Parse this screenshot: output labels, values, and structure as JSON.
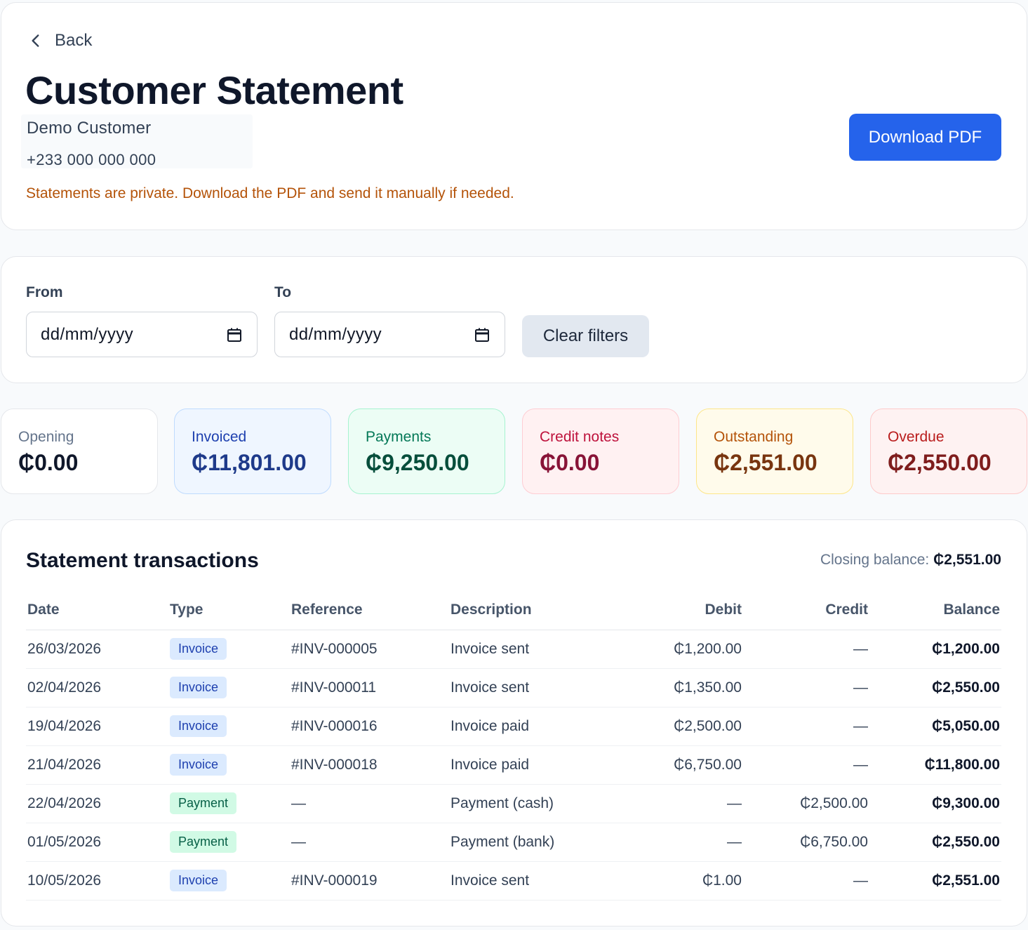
{
  "header": {
    "back_label": "Back",
    "title": "Customer Statement",
    "customer_name": "Demo Customer",
    "customer_phone": "+233 000 000 000",
    "privacy_note": "Statements are private. Download the PDF and send it manually if needed.",
    "download_label": "Download PDF"
  },
  "filters": {
    "from_label": "From",
    "to_label": "To",
    "from_placeholder": "dd/mm/yyyy",
    "to_placeholder": "dd/mm/yyyy",
    "clear_label": "Clear filters"
  },
  "summary": [
    {
      "label": "Opening",
      "value": "₵0.00",
      "bg": "#ffffff",
      "border": "#e5e7eb",
      "label_color": "#64748b",
      "value_color": "#0f172a"
    },
    {
      "label": "Invoiced",
      "value": "₵11,801.00",
      "bg": "#eff6ff",
      "border": "#bfdbfe",
      "label_color": "#1e40af",
      "value_color": "#1e3a8a"
    },
    {
      "label": "Payments",
      "value": "₵9,250.00",
      "bg": "#ecfdf5",
      "border": "#a7f3d0",
      "label_color": "#047857",
      "value_color": "#064e3b"
    },
    {
      "label": "Credit notes",
      "value": "₵0.00",
      "bg": "#fff1f2",
      "border": "#fecdd3",
      "label_color": "#be123c",
      "value_color": "#881337"
    },
    {
      "label": "Outstanding",
      "value": "₵2,551.00",
      "bg": "#fffbeb",
      "border": "#fde68a",
      "label_color": "#b45309",
      "value_color": "#78350f"
    },
    {
      "label": "Overdue",
      "value": "₵2,550.00",
      "bg": "#fef2f2",
      "border": "#fecaca",
      "label_color": "#b91c1c",
      "value_color": "#7f1d1d"
    }
  ],
  "transactions": {
    "title": "Statement transactions",
    "closing_label": "Closing balance:",
    "closing_value": "₵2,551.00",
    "columns": [
      "Date",
      "Type",
      "Reference",
      "Description",
      "Debit",
      "Credit",
      "Balance"
    ],
    "rows": [
      {
        "date": "26/03/2026",
        "type": "Invoice",
        "ref": "#INV-000005",
        "desc": "Invoice sent",
        "debit": "₵1,200.00",
        "credit": "—",
        "balance": "₵1,200.00"
      },
      {
        "date": "02/04/2026",
        "type": "Invoice",
        "ref": "#INV-000011",
        "desc": "Invoice sent",
        "debit": "₵1,350.00",
        "credit": "—",
        "balance": "₵2,550.00"
      },
      {
        "date": "19/04/2026",
        "type": "Invoice",
        "ref": "#INV-000016",
        "desc": "Invoice paid",
        "debit": "₵2,500.00",
        "credit": "—",
        "balance": "₵5,050.00"
      },
      {
        "date": "21/04/2026",
        "type": "Invoice",
        "ref": "#INV-000018",
        "desc": "Invoice paid",
        "debit": "₵6,750.00",
        "credit": "—",
        "balance": "₵11,800.00"
      },
      {
        "date": "22/04/2026",
        "type": "Payment",
        "ref": "—",
        "desc": "Payment (cash)",
        "debit": "—",
        "credit": "₵2,500.00",
        "balance": "₵9,300.00"
      },
      {
        "date": "01/05/2026",
        "type": "Payment",
        "ref": "—",
        "desc": "Payment (bank)",
        "debit": "—",
        "credit": "₵6,750.00",
        "balance": "₵2,550.00"
      },
      {
        "date": "10/05/2026",
        "type": "Invoice",
        "ref": "#INV-000019",
        "desc": "Invoice sent",
        "debit": "₵1.00",
        "credit": "—",
        "balance": "₵2,551.00"
      }
    ]
  }
}
